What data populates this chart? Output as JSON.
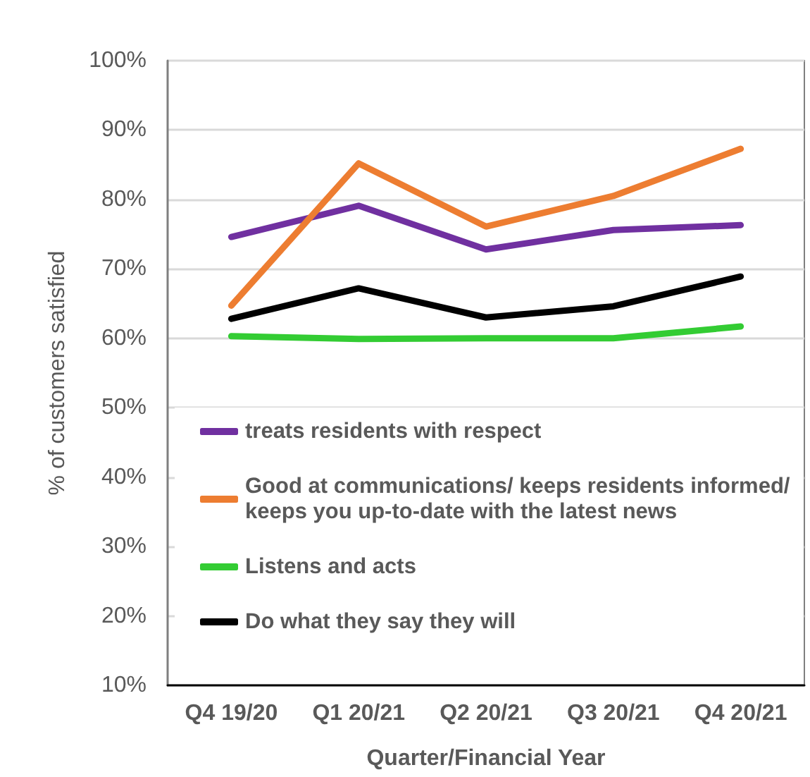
{
  "chart_data": {
    "type": "line",
    "xlabel": "Quarter/Financial Year",
    "ylabel": "% of customers satisfied",
    "categories": [
      "Q4 19/20",
      "Q1 20/21",
      "Q2 20/21",
      "Q3 20/21",
      "Q4 20/21"
    ],
    "series": [
      {
        "name": "treats residents with respect",
        "color": "#7030a0",
        "values": [
          74.6,
          79.1,
          72.8,
          75.6,
          76.3
        ]
      },
      {
        "name": "Good at communications/ keeps residents informed/ keeps you up-to-date with the latest news",
        "color": "#ed7d31",
        "values": [
          64.7,
          85.2,
          76.1,
          80.5,
          87.3
        ]
      },
      {
        "name": "Listens and acts",
        "color": "#33cc33",
        "values": [
          60.3,
          59.9,
          60.0,
          60.0,
          61.7
        ]
      },
      {
        "name": "Do what they say they will",
        "color": "#000000",
        "values": [
          62.8,
          67.2,
          63.0,
          64.6,
          68.9
        ]
      }
    ],
    "ylim": [
      10,
      100
    ],
    "yticks": [
      {
        "value": 10,
        "label": "10%"
      },
      {
        "value": 20,
        "label": "20%"
      },
      {
        "value": 30,
        "label": "30%"
      },
      {
        "value": 40,
        "label": "40%"
      },
      {
        "value": 50,
        "label": "50%"
      },
      {
        "value": 60,
        "label": "60%"
      },
      {
        "value": 70,
        "label": "70%"
      },
      {
        "value": 80,
        "label": "80%"
      },
      {
        "value": 90,
        "label": "90%"
      },
      {
        "value": 100,
        "label": "100%"
      }
    ],
    "grid": "y",
    "legend": "bottom left",
    "marker": "none"
  }
}
